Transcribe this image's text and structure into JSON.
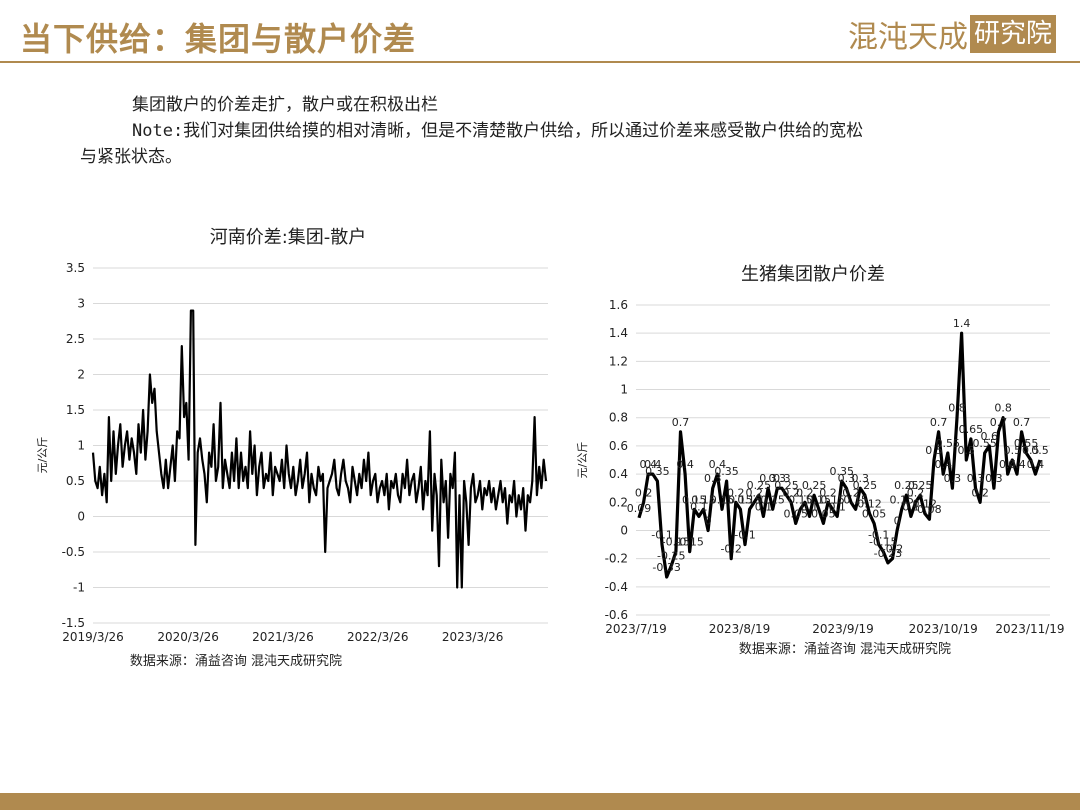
{
  "header": {
    "title": "当下供给：集团与散户价差",
    "logo_text": "混沌天成",
    "logo_box": "研究院"
  },
  "body": {
    "line1": "集团散户的价差走扩，散户或在积极出栏",
    "line2": "Note:我们对集团供给摸的相对清晰，但是不清楚散户供给，所以通过价差来感受散户供给的宽松",
    "line3": "与紧张状态。"
  },
  "colors": {
    "accent": "#b08a4f",
    "line": "#000000",
    "grid": "#d9d9d9"
  },
  "chart_data": [
    {
      "type": "line",
      "title": "河南价差:集团-散户",
      "ylabel": "元/公斤",
      "source": "数据来源：涌益咨询 混沌天成研究院",
      "ylim": [
        -1.5,
        3.5
      ],
      "yticks": [
        "3.5",
        "3",
        "2.5",
        "2",
        "1.5",
        "1",
        "0.5",
        "0",
        "-0.5",
        "-1",
        "-1.5"
      ],
      "xticks": [
        "2019/3/26",
        "2020/3/26",
        "2021/3/26",
        "2022/3/26",
        "2023/3/26"
      ],
      "x_start": "2019-03-26",
      "x_end": "2024-01-10",
      "grid": true,
      "series": [
        {
          "values": [
            0.9,
            0.5,
            0.4,
            0.7,
            0.3,
            0.6,
            0.2,
            1.4,
            0.5,
            1.2,
            0.6,
            1.0,
            1.3,
            0.7,
            1.0,
            1.2,
            0.8,
            1.1,
            0.9,
            0.6,
            1.3,
            0.9,
            1.5,
            0.8,
            1.2,
            2.0,
            1.6,
            1.8,
            1.2,
            0.9,
            0.6,
            0.4,
            0.8,
            0.4,
            0.7,
            1.0,
            0.5,
            1.2,
            1.1,
            2.4,
            1.4,
            1.6,
            0.8,
            2.9,
            2.9,
            -0.4,
            0.9,
            1.1,
            0.8,
            0.6,
            0.2,
            0.9,
            0.7,
            1.3,
            0.5,
            0.7,
            1.6,
            0.4,
            0.8,
            0.6,
            0.4,
            0.9,
            0.5,
            1.1,
            0.4,
            0.9,
            0.5,
            0.7,
            0.4,
            1.2,
            0.6,
            1.0,
            0.3,
            0.7,
            0.9,
            0.4,
            0.6,
            0.5,
            0.9,
            0.3,
            0.7,
            0.6,
            0.5,
            0.8,
            0.4,
            1.0,
            0.6,
            0.4,
            0.7,
            0.3,
            0.5,
            0.8,
            0.4,
            0.6,
            0.9,
            0.2,
            0.6,
            0.4,
            0.3,
            0.7,
            0.5,
            0.6,
            -0.5,
            0.4,
            0.5,
            0.6,
            0.8,
            0.4,
            0.3,
            0.6,
            0.8,
            0.5,
            0.4,
            0.2,
            0.7,
            0.5,
            0.3,
            0.6,
            0.4,
            0.8,
            0.5,
            0.9,
            0.3,
            0.5,
            0.6,
            0.2,
            0.4,
            0.5,
            0.3,
            0.6,
            0.1,
            0.5,
            0.4,
            0.6,
            0.3,
            0.2,
            0.6,
            0.4,
            0.8,
            0.3,
            0.5,
            0.6,
            0.2,
            0.4,
            0.7,
            0.1,
            0.5,
            0.3,
            1.2,
            -0.2,
            0.6,
            0.3,
            -0.7,
            0.8,
            0.2,
            0.5,
            -0.3,
            0.6,
            0.4,
            0.9,
            -1.0,
            0.3,
            -1.0,
            0.5,
            0.2,
            -0.4,
            0.4,
            0.6,
            0.2,
            0.3,
            0.5,
            0.1,
            0.4,
            0.3,
            0.5,
            0.2,
            0.4,
            0.1,
            0.3,
            0.5,
            0.2,
            0.4,
            -0.1,
            0.3,
            0.2,
            0.5,
            0.0,
            0.3,
            0.1,
            0.4,
            -0.2,
            0.3,
            0.2,
            0.5,
            1.4,
            0.3,
            0.7,
            0.4,
            0.8,
            0.5
          ]
        }
      ]
    },
    {
      "type": "line",
      "title": "生猪集团散户价差",
      "ylabel": "元/公斤",
      "source": "数据来源：涌益咨询  混沌天成研究院",
      "ylim": [
        -0.6,
        1.6
      ],
      "yticks": [
        "1.6",
        "1.4",
        "1.2",
        "1",
        "0.8",
        "0.6",
        "0.4",
        "0.2",
        "0",
        "-0.2",
        "-0.4",
        "-0.6"
      ],
      "xticks": [
        "2023/7/19",
        "2023/8/19",
        "2023/9/19",
        "2023/10/19",
        "2023/11/19"
      ],
      "x_start": "2023-07-19",
      "x_end": "2023-11-20",
      "grid": true,
      "series": [
        {
          "values": [
            0.09,
            0.2,
            0.4,
            0.4,
            0.35,
            -0.1,
            -0.33,
            -0.25,
            -0.15,
            0.7,
            0.4,
            -0.15,
            0.15,
            0.1,
            0.15,
            0.0,
            0.3,
            0.4,
            0.15,
            0.35,
            -0.2,
            0.2,
            0.15,
            -0.1,
            0.15,
            0.2,
            0.25,
            0.1,
            0.3,
            0.15,
            0.3,
            0.3,
            0.25,
            0.2,
            0.05,
            0.15,
            0.2,
            0.1,
            0.25,
            0.15,
            0.05,
            0.2,
            0.15,
            0.1,
            0.35,
            0.3,
            0.2,
            0.15,
            0.3,
            0.25,
            0.12,
            0.05,
            -0.1,
            -0.15,
            -0.23,
            -0.2,
            0.0,
            0.15,
            0.25,
            0.1,
            0.2,
            0.25,
            0.12,
            0.08,
            0.5,
            0.7,
            0.4,
            0.55,
            0.3,
            0.8,
            1.4,
            0.5,
            0.65,
            0.3,
            0.2,
            0.55,
            0.6,
            0.3,
            0.7,
            0.8,
            0.4,
            0.5,
            0.4,
            0.7,
            0.55,
            0.5,
            0.4,
            0.5
          ]
        }
      ],
      "data_labels": [
        "0.09",
        "0.2",
        "0.4",
        "0.4",
        "0.35",
        "-0.1",
        "-0.33",
        "-0.25",
        "-0.15",
        "0.7",
        "0.4",
        "-0.15",
        "0.15",
        "0.1",
        "0.15",
        "0",
        "0.3",
        "0.4",
        "0.15",
        "0.35",
        "-0.2",
        "0.2",
        "0.15",
        "-0.1",
        "0.15",
        "0.2",
        "0.25",
        "0.1",
        "0.3",
        "0.15",
        "0.3",
        "0.3",
        "0.25",
        "0.2",
        "0.05",
        "0.15",
        "0.2",
        "0.1",
        "0.25",
        "0.15",
        "0.05",
        "0.2",
        "0.15",
        "0.1",
        "0.35",
        "0.3",
        "0.2",
        "0.15",
        "0.3",
        "0.25",
        "0.12",
        "0.05",
        "-0.1",
        "-0.15",
        "-0.23",
        "-0.2",
        "0",
        "0.15",
        "0.25",
        "0.1",
        "0.2",
        "0.25",
        "0.12",
        "0.08",
        "0.5",
        "0.7",
        "0.4",
        "0.55",
        "0.3",
        "0.8",
        "1.4",
        "0.5",
        "0.65",
        "0.3",
        "0.2",
        "0.55",
        "0.6",
        "0.3",
        "0.7",
        "0.8",
        "0.4",
        "0.5",
        "0.4",
        "0.7",
        "0.55",
        "0.5",
        "0.4",
        "0.5"
      ]
    }
  ]
}
